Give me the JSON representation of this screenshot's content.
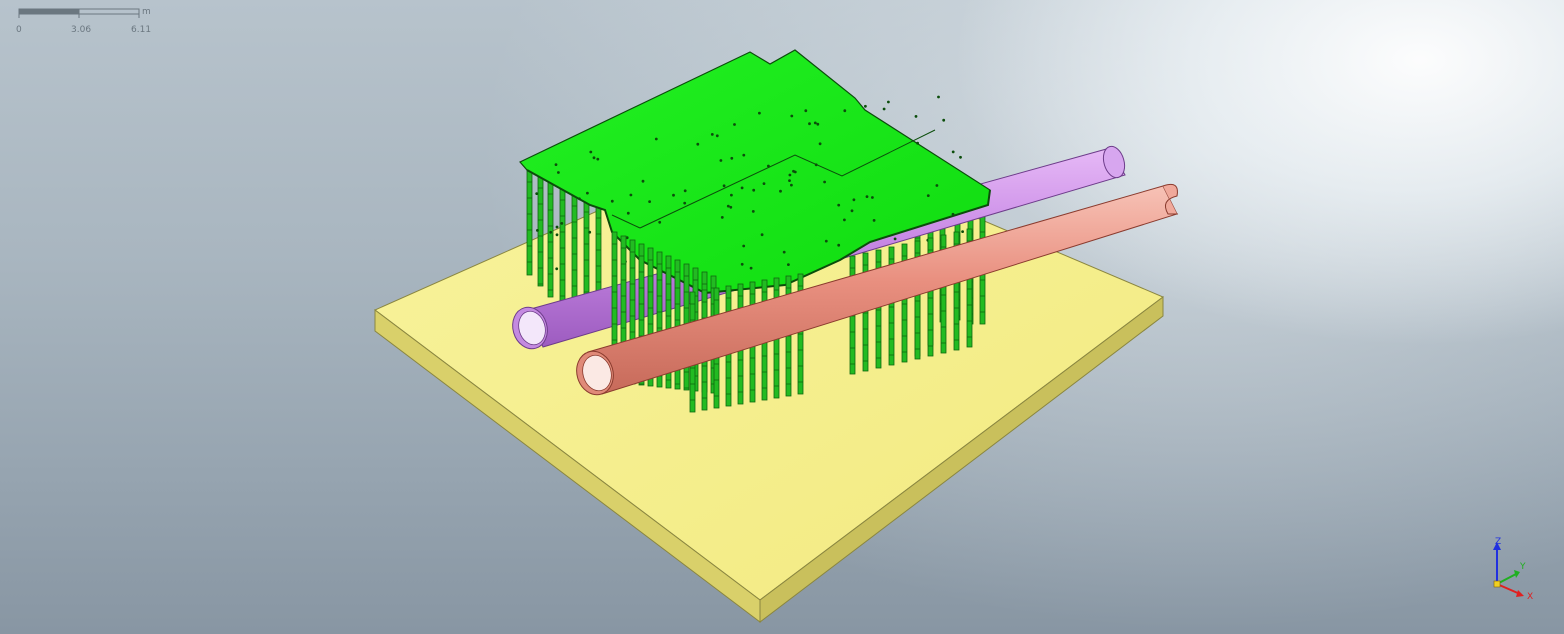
{
  "scale_bar": {
    "unit": "m",
    "ticks": [
      "0",
      "3.06",
      "6.11"
    ]
  },
  "axes": {
    "z_label": "Z",
    "y_label": "Y",
    "x_label": "X"
  },
  "colors": {
    "ground_slab": "#f6f08c",
    "deck": "#11ee11",
    "piles": "#22bb22",
    "pipe_back": "#c98ae6",
    "pipe_front": "#e99080",
    "axis_x": "#e02020",
    "axis_y": "#20b020",
    "axis_z": "#2030e0"
  },
  "scene": {
    "objects": [
      "ground-slab",
      "deck-plate",
      "pile-grid",
      "pipe-back",
      "pipe-front"
    ]
  }
}
